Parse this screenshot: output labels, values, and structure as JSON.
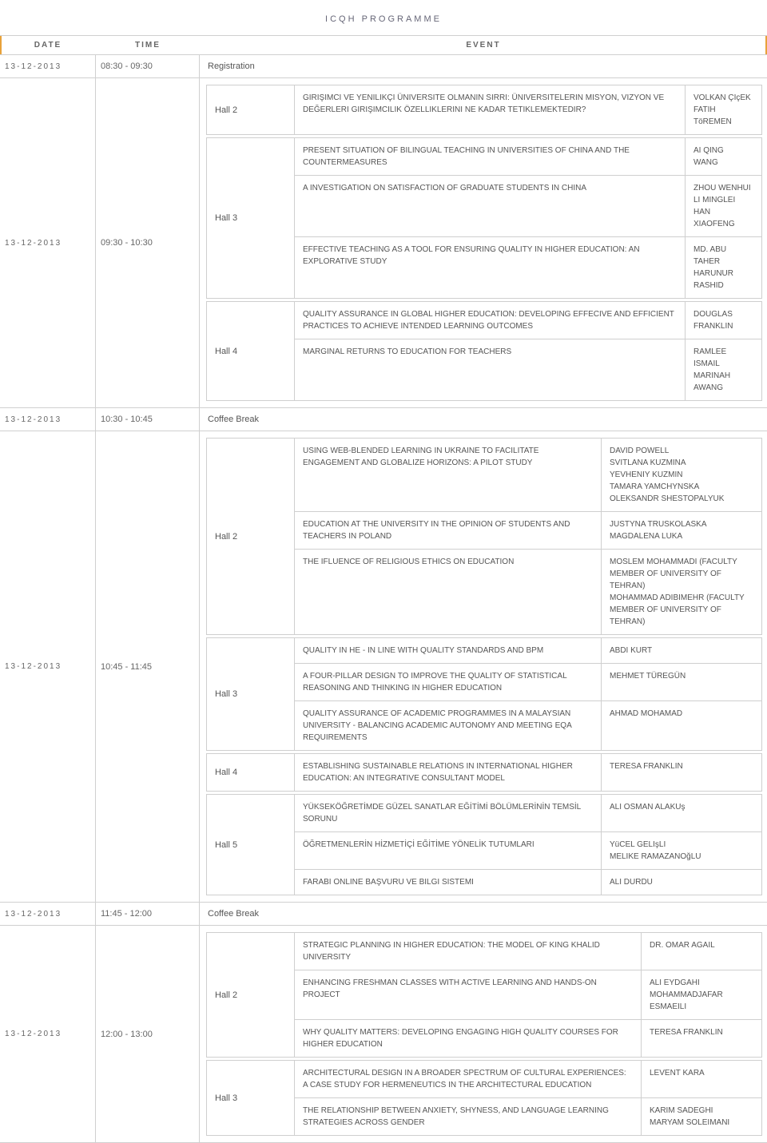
{
  "page_title": "ICQH PROGRAMME",
  "headers": {
    "date": "DATE",
    "time": "TIME",
    "event": "EVENT"
  },
  "colors": {
    "accent": "#e8a23a",
    "border": "#d0d0d0",
    "text": "#555"
  },
  "rows": [
    {
      "date": "13-12-2013",
      "time": "08:30 - 09:30",
      "type": "simple",
      "event": "Registration"
    },
    {
      "date": "13-12-2013",
      "time": "09:30 - 10:30",
      "type": "sessions",
      "speaker_width": "spk-narrow",
      "halls": [
        {
          "name": "Hall 2",
          "sessions": [
            {
              "title": "GIRIşIMCI VE YENILIKçI ÜNIVERSITE OLMANıN SıRRı: ÜNIVERSITELERIN MISYON, VIZYON VE DEğERLERI GIRIşIMCILIK ÖZELLIKLERINI NE KADAR TETIKLEMEKTEDIR?",
              "speakers": "VOLKAN ÇIçEK\nFATIH TöREMEN"
            }
          ]
        },
        {
          "name": "Hall 3",
          "sessions": [
            {
              "title": "PRESENT SITUATION OF BILINGUAL TEACHING IN UNIVERSITIES OF CHINA AND THE COUNTERMEASURES",
              "speakers": "AI QING\nWANG"
            },
            {
              "title": "A INVESTIGATION ON SATISFACTION OF GRADUATE STUDENTS IN CHINA",
              "speakers": "ZHOU WENHUI\nLI MINGLEI\nHAN XIAOFENG"
            },
            {
              "title": "EFFECTIVE TEACHING AS A TOOL FOR ENSURING QUALITY IN HIGHER EDUCATION: AN EXPLORATIVE STUDY",
              "speakers": "MD. ABU TAHER\nHARUNUR RASHID"
            }
          ]
        },
        {
          "name": "Hall 4",
          "sessions": [
            {
              "title": "QUALITY ASSURANCE IN GLOBAL HIGHER EDUCATION: DEVELOPING EFFECIVE AND EFFICIENT PRACTICES TO ACHIEVE INTENDED LEARNING OUTCOMES",
              "speakers": "DOUGLAS FRANKLIN"
            },
            {
              "title": "MARGINAL RETURNS TO EDUCATION FOR TEACHERS",
              "speakers": "RAMLEE ISMAIL\nMARINAH AWANG"
            }
          ]
        }
      ]
    },
    {
      "date": "13-12-2013",
      "time": "10:30 - 10:45",
      "type": "simple",
      "event": "Coffee Break"
    },
    {
      "date": "13-12-2013",
      "time": "10:45 - 11:45",
      "type": "sessions",
      "speaker_width": "spk-mid",
      "halls": [
        {
          "name": "Hall 2",
          "sessions": [
            {
              "title": "USING WEB-BLENDED LEARNING IN UKRAINE TO FACILITATE ENGAGEMENT AND GLOBALIZE HORIZONS: A PILOT STUDY",
              "speakers": "DAVID POWELL\nSVITLANA KUZMINA\nYEVHENIY KUZMIN\nTAMARA YAMCHYNSKA\nOLEKSANDR SHESTOPALYUK"
            },
            {
              "title": "EDUCATION AT THE UNIVERSITY IN THE OPINION OF STUDENTS AND TEACHERS IN POLAND",
              "speakers": "JUSTYNA TRUSKOLASKA\nMAGDALENA LUKA"
            },
            {
              "title": "THE IFLUENCE OF RELIGIOUS ETHICS ON EDUCATION",
              "speakers": "MOSLEM MOHAMMADI (FACULTY MEMBER OF UNIVERSITY OF TEHRAN)\nMOHAMMAD ADIBIMEHR (FACULTY MEMBER OF UNIVERSITY OF TEHRAN)"
            }
          ]
        },
        {
          "name": "Hall 3",
          "sessions": [
            {
              "title": "QUALITY IN HE - IN LINE WITH QUALITY STANDARDS AND BPM",
              "speakers": "ABDI KURT"
            },
            {
              "title": "A FOUR-PILLAR DESIGN TO IMPROVE THE QUALITY OF STATISTICAL REASONING AND THINKING IN HIGHER EDUCATION",
              "speakers": "MEHMET TÜREGÜN"
            },
            {
              "title": "QUALITY ASSURANCE OF ACADEMIC PROGRAMMES IN A MALAYSIAN UNIVERSITY - BALANCING ACADEMIC AUTONOMY AND MEETING EQA REQUIREMENTS",
              "speakers": "AHMAD MOHAMAD"
            }
          ]
        },
        {
          "name": "Hall 4",
          "sessions": [
            {
              "title": "ESTABLISHING SUSTAINABLE RELATIONS IN INTERNATIONAL HIGHER EDUCATION: AN INTEGRATIVE CONSULTANT MODEL",
              "speakers": "TERESA FRANKLIN"
            }
          ]
        },
        {
          "name": "Hall 5",
          "sessions": [
            {
              "title": "YÜKSEKÖĞRETİMDE GÜZEL SANATLAR EĞİTİMİ BÖLÜMLERİNİN TEMSİL SORUNU",
              "speakers": "ALI OSMAN ALAKUş"
            },
            {
              "title": "ÖĞRETMENLERİN HİZMETİÇİ EĞİTİME YÖNELİK TUTUMLARI",
              "speakers": "YüCEL GELIşLI\nMELIKE RAMAZANOğLU"
            },
            {
              "title": "FARABI ONLINE BAşVURU VE BILGI SISTEMI",
              "speakers": "ALI DURDU"
            }
          ]
        }
      ]
    },
    {
      "date": "13-12-2013",
      "time": "11:45 - 12:00",
      "type": "simple",
      "event": "Coffee Break"
    },
    {
      "date": "13-12-2013",
      "time": "12:00 - 13:00",
      "type": "sessions",
      "speaker_width": "spk-wide",
      "halls": [
        {
          "name": "Hall 2",
          "sessions": [
            {
              "title": "STRATEGIC PLANNING IN HIGHER EDUCATION: THE MODEL OF KING KHALID UNIVERSITY",
              "speakers": "DR. OMAR AGAIL"
            },
            {
              "title": "ENHANCING FRESHMAN CLASSES WITH ACTIVE LEARNING AND HANDS-ON PROJECT",
              "speakers": "ALI EYDGAHI\nMOHAMMADJAFAR ESMAEILI"
            },
            {
              "title": "WHY QUALITY MATTERS: DEVELOPING ENGAGING HIGH QUALITY COURSES FOR HIGHER EDUCATION",
              "speakers": "TERESA FRANKLIN"
            }
          ]
        },
        {
          "name": "Hall 3",
          "sessions": [
            {
              "title": "ARCHITECTURAL DESIGN IN A BROADER SPECTRUM OF CULTURAL EXPERIENCES: A CASE STUDY FOR HERMENEUTICS IN THE ARCHITECTURAL EDUCATION",
              "speakers": "LEVENT KARA"
            },
            {
              "title": "THE RELATIONSHIP BETWEEN ANXIETY, SHYNESS, AND LANGUAGE LEARNING STRATEGIES ACROSS GENDER",
              "speakers": "KARIM SADEGHI\nMARYAM SOLEIMANI"
            }
          ]
        }
      ]
    }
  ]
}
